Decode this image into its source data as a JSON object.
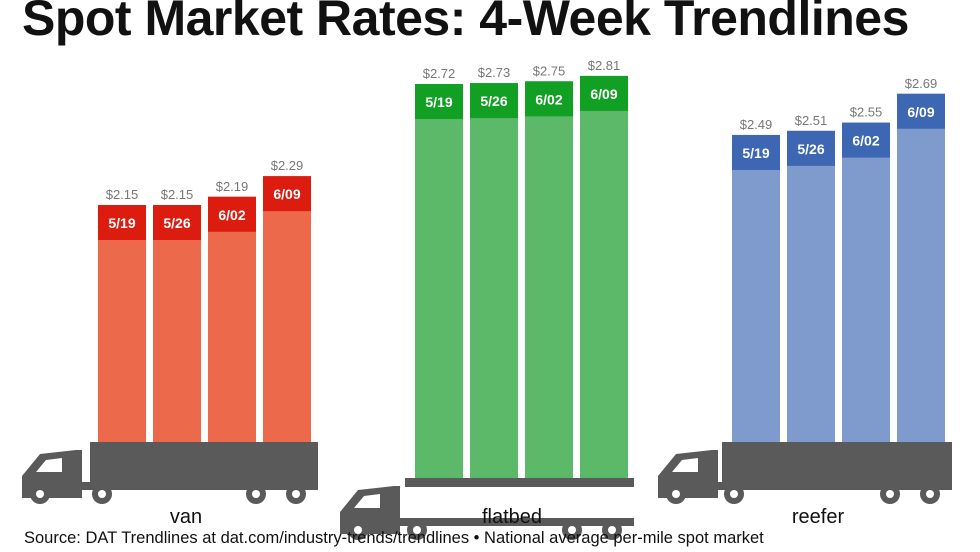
{
  "title": "Spot Market Rates: 4-Week Trendlines",
  "source": "Source: DAT Trendlines at dat.com/industry-trends/trendlines • National average per-mile spot market",
  "colors": {
    "van_bar": "#ec6a4b",
    "van_label": "#dd1c10",
    "flatbed_bar": "#5cb96a",
    "flatbed_label": "#12a024",
    "reefer_bar": "#7f9bce",
    "reefer_label": "#3d66b3",
    "truck": "#5a5a5a",
    "value_text": "#777777"
  },
  "chart_data": [
    {
      "type": "bar",
      "group": "van",
      "categories": [
        "5/19",
        "5/26",
        "6/02",
        "6/09"
      ],
      "values": [
        2.15,
        2.15,
        2.19,
        2.29
      ],
      "value_labels": [
        "$2.15",
        "$2.15",
        "$2.19",
        "$2.29"
      ]
    },
    {
      "type": "bar",
      "group": "flatbed",
      "categories": [
        "5/19",
        "5/26",
        "6/02",
        "6/09"
      ],
      "values": [
        2.72,
        2.73,
        2.75,
        2.81
      ],
      "value_labels": [
        "$2.72",
        "$2.73",
        "$2.75",
        "$2.81"
      ]
    },
    {
      "type": "bar",
      "group": "reefer",
      "categories": [
        "5/19",
        "5/26",
        "6/02",
        "6/09"
      ],
      "values": [
        2.49,
        2.51,
        2.55,
        2.69
      ],
      "value_labels": [
        "$2.49",
        "$2.51",
        "$2.55",
        "$2.69"
      ]
    }
  ]
}
